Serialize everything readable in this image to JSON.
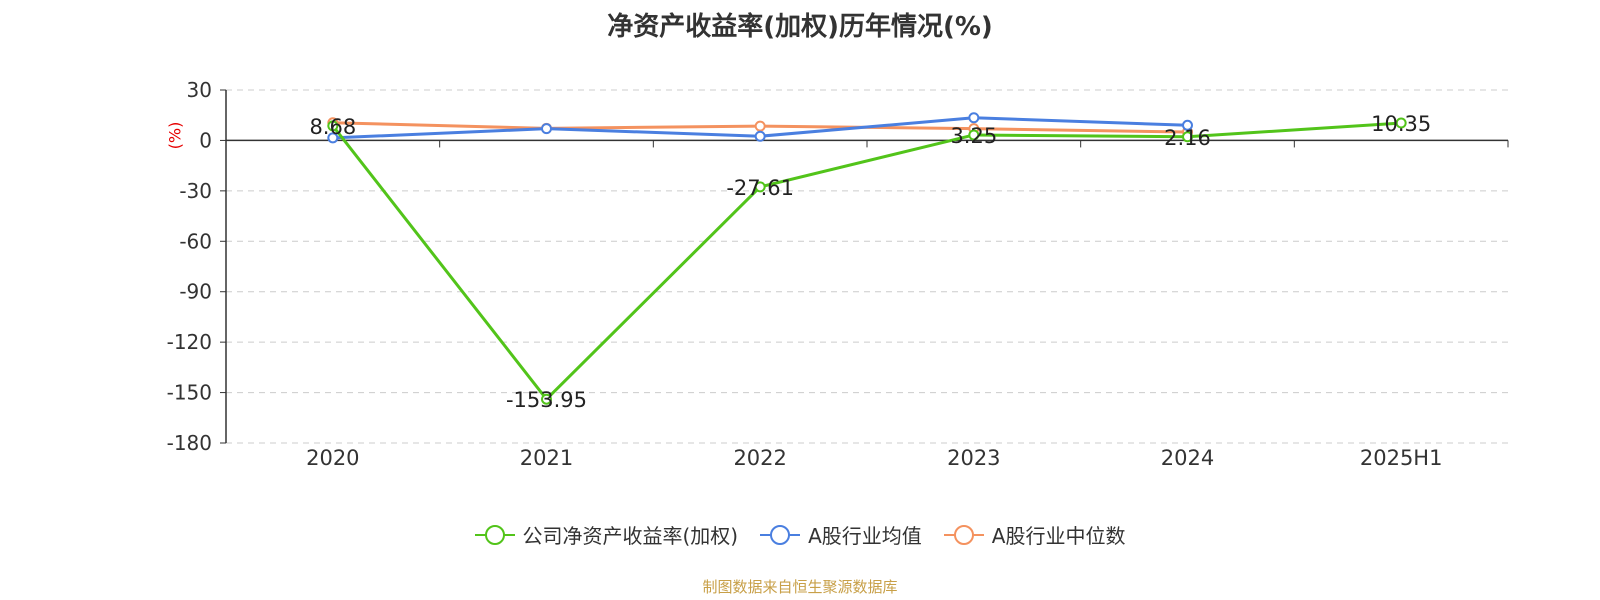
{
  "chart_data": {
    "type": "line",
    "title": "净资产收益率(加权)历年情况(%)",
    "ylabel": "(%)",
    "xlabel": "",
    "categories": [
      "2020",
      "2021",
      "2022",
      "2023",
      "2024",
      "2025H1"
    ],
    "ylim": [
      -180,
      30
    ],
    "yticks": [
      "30",
      "0",
      "-30",
      "-60",
      "-90",
      "-120",
      "-150",
      "-180"
    ],
    "grid": true,
    "legend_position": "bottom",
    "series": [
      {
        "name": "公司净资产收益率(加权)",
        "color": "#52c41a",
        "values": [
          8.68,
          -153.95,
          -27.61,
          3.25,
          2.16,
          10.35
        ],
        "labels": [
          "8.68",
          "-153.95",
          "-27.61",
          "3.25",
          "2.16",
          "10.35"
        ]
      },
      {
        "name": "A股行业均值",
        "color": "#4a7fe0",
        "values": [
          1.5,
          7.0,
          2.5,
          13.5,
          9.0,
          null
        ]
      },
      {
        "name": "A股行业中位数",
        "color": "#f4925f",
        "values": [
          10.5,
          7.2,
          8.5,
          7.0,
          5.0,
          null
        ]
      }
    ]
  },
  "source": "制图数据来自恒生聚源数据库"
}
